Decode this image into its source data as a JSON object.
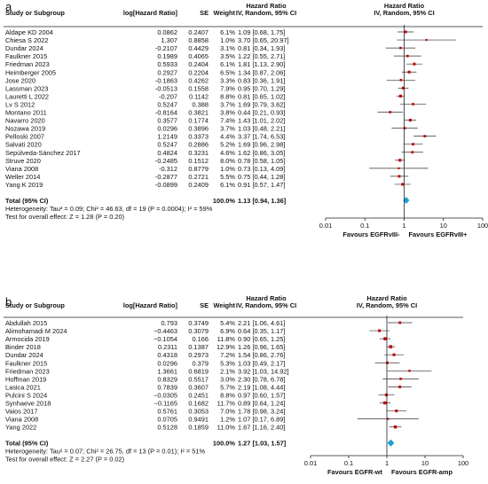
{
  "chart_data": [
    {
      "type": "forest",
      "panel_label": "a",
      "columns": {
        "study": "Study or Subgroup",
        "log_hr": "log[Hazard Ratio]",
        "se": "SE",
        "weight": "Weight",
        "hr_group": "Hazard Ratio",
        "hr_sub": "IV, Random, 95% CI",
        "plot_group": "Hazard Ratio",
        "plot_sub": "IV, Random, 95% CI"
      },
      "studies": [
        {
          "name": "Aldape KD 2004",
          "log_hr": "0.0862",
          "se": "0.2407",
          "weight": "6.1%",
          "ci_text": "1.09 [0.68, 1.75]",
          "hr": 1.09,
          "lo": 0.68,
          "hi": 1.75
        },
        {
          "name": "Chiesa S 2022",
          "log_hr": "1.307",
          "se": "0.8858",
          "weight": "1.0%",
          "ci_text": "3.70 [0.65, 20.97]",
          "hr": 3.7,
          "lo": 0.65,
          "hi": 20.97
        },
        {
          "name": "Dundar 2024",
          "log_hr": "-0.2107",
          "se": "0.4429",
          "weight": "3.1%",
          "ci_text": "0.81 [0.34, 1.93]",
          "hr": 0.81,
          "lo": 0.34,
          "hi": 1.93
        },
        {
          "name": "Faulkner 2015",
          "log_hr": "0.1989",
          "se": "0.4065",
          "weight": "3.5%",
          "ci_text": "1.22 [0.55, 2.71]",
          "hr": 1.22,
          "lo": 0.55,
          "hi": 2.71
        },
        {
          "name": "Friedman 2023",
          "log_hr": "0.5933",
          "se": "0.2404",
          "weight": "6.1%",
          "ci_text": "1.81 [1.13, 2.90]",
          "hr": 1.81,
          "lo": 1.13,
          "hi": 2.9
        },
        {
          "name": "Heimberger 2005",
          "log_hr": "0.2927",
          "se": "0.2204",
          "weight": "6.5%",
          "ci_text": "1.34 [0.87, 2.06]",
          "hr": 1.34,
          "lo": 0.87,
          "hi": 2.06
        },
        {
          "name": "Jose 2020",
          "log_hr": "-0.1863",
          "se": "0.4262",
          "weight": "3.3%",
          "ci_text": "0.83 [0.36, 1.91]",
          "hr": 0.83,
          "lo": 0.36,
          "hi": 1.91
        },
        {
          "name": "Lassman 2023",
          "log_hr": "-0.0513",
          "se": "0.1558",
          "weight": "7.9%",
          "ci_text": "0.95 [0.70, 1.29]",
          "hr": 0.95,
          "lo": 0.7,
          "hi": 1.29
        },
        {
          "name": "Lauretti L 2022",
          "log_hr": "-0.207",
          "se": "0.1142",
          "weight": "8.8%",
          "ci_text": "0.81 [0.65, 1.02]",
          "hr": 0.81,
          "lo": 0.65,
          "hi": 1.02
        },
        {
          "name": "Lv S 2012",
          "log_hr": "0.5247",
          "se": "0.388",
          "weight": "3.7%",
          "ci_text": "1.69 [0.79, 3.62]",
          "hr": 1.69,
          "lo": 0.79,
          "hi": 3.62
        },
        {
          "name": "Montano 2011",
          "log_hr": "-0.8164",
          "se": "0.3821",
          "weight": "3.8%",
          "ci_text": "0.44 [0.21, 0.93]",
          "hr": 0.44,
          "lo": 0.21,
          "hi": 0.93
        },
        {
          "name": "Navarro 2020",
          "log_hr": "0.3577",
          "se": "0.1774",
          "weight": "7.4%",
          "ci_text": "1.43 [1.01, 2.02]",
          "hr": 1.43,
          "lo": 1.01,
          "hi": 2.02
        },
        {
          "name": "Nozawa 2019",
          "log_hr": "0.0296",
          "se": "0.3896",
          "weight": "3.7%",
          "ci_text": "1.03 [0.48, 2.21]",
          "hr": 1.03,
          "lo": 0.48,
          "hi": 2.21
        },
        {
          "name": "Pelloski 2007",
          "log_hr": "1.2149",
          "se": "0.3373",
          "weight": "4.4%",
          "ci_text": "3.37 [1.74, 6.53]",
          "hr": 3.37,
          "lo": 1.74,
          "hi": 6.53
        },
        {
          "name": "Salvati 2020",
          "log_hr": "0.5247",
          "se": "0.2886",
          "weight": "5.2%",
          "ci_text": "1.69 [0.96, 2.98]",
          "hr": 1.69,
          "lo": 0.96,
          "hi": 2.98
        },
        {
          "name": "Sepúlveda-Sánchez 2017",
          "log_hr": "0.4824",
          "se": "0.3231",
          "weight": "4.6%",
          "ci_text": "1.62 [0.86, 3.05]",
          "hr": 1.62,
          "lo": 0.86,
          "hi": 3.05
        },
        {
          "name": "Struve 2020",
          "log_hr": "-0.2485",
          "se": "0.1512",
          "weight": "8.0%",
          "ci_text": "0.78 [0.58, 1.05]",
          "hr": 0.78,
          "lo": 0.58,
          "hi": 1.05
        },
        {
          "name": "Viana 2008",
          "log_hr": "-0.312",
          "se": "0.8779",
          "weight": "1.0%",
          "ci_text": "0.73 [0.13, 4.09]",
          "hr": 0.73,
          "lo": 0.13,
          "hi": 4.09
        },
        {
          "name": "Weller 2014",
          "log_hr": "-0.2877",
          "se": "0.2721",
          "weight": "5.5%",
          "ci_text": "0.75 [0.44, 1.28]",
          "hr": 0.75,
          "lo": 0.44,
          "hi": 1.28
        },
        {
          "name": "Yang K 2019",
          "log_hr": "-0.0899",
          "se": "0.2409",
          "weight": "6.1%",
          "ci_text": "0.91 [0.57, 1.47]",
          "hr": 0.91,
          "lo": 0.57,
          "hi": 1.47
        }
      ],
      "total": {
        "label": "Total (95% CI)",
        "weight": "100.0%",
        "ci_text": "1.13 [0.94, 1.36]",
        "hr": 1.13,
        "lo": 0.94,
        "hi": 1.36
      },
      "heterogeneity": "Heterogeneity: Tau² = 0.09; Chi² = 46.63, df = 19 (P = 0.0004); I² = 59%",
      "overall_effect": "Test for overall effect: Z = 1.28 (P = 0.20)",
      "axis": {
        "scale": "log",
        "ticks": [
          0.01,
          0.1,
          1,
          10,
          100
        ],
        "tick_labels": [
          "0.01",
          "0.1",
          "1",
          "10",
          "100"
        ]
      },
      "favours_left": "Favours EGFRvIII-",
      "favours_right": "Favours EGFRvIII+"
    },
    {
      "type": "forest",
      "panel_label": "b",
      "columns": {
        "study": "Study or Subgroup",
        "log_hr": "log[Hazard Ratio]",
        "se": "SE",
        "weight": "Weight",
        "hr_group": "Hazard Ratio",
        "hr_sub": "IV, Random, 95% CI",
        "plot_group": "Hazard Ratio",
        "plot_sub": "IV, Random, 95% CI"
      },
      "studies": [
        {
          "name": "Abdullah 2015",
          "log_hr": "0.793",
          "se": "0.3749",
          "weight": "5.4%",
          "ci_text": "2.21 [1.06, 4.61]",
          "hr": 2.21,
          "lo": 1.06,
          "hi": 4.61
        },
        {
          "name": "Alimohamadi M 2024",
          "log_hr": "−0.4463",
          "se": "0.3079",
          "weight": "6.9%",
          "ci_text": "0.64 [0.35, 1.17]",
          "hr": 0.64,
          "lo": 0.35,
          "hi": 1.17
        },
        {
          "name": "Armocida 2019",
          "log_hr": "−0.1054",
          "se": "0.166",
          "weight": "11.8%",
          "ci_text": "0.90 [0.65, 1.25]",
          "hr": 0.9,
          "lo": 0.65,
          "hi": 1.25
        },
        {
          "name": "Binder 2018",
          "log_hr": "0.2311",
          "se": "0.1387",
          "weight": "12.9%",
          "ci_text": "1.26 [0.96, 1.65]",
          "hr": 1.26,
          "lo": 0.96,
          "hi": 1.65
        },
        {
          "name": "Dundar 2024",
          "log_hr": "0.4318",
          "se": "0.2973",
          "weight": "7.2%",
          "ci_text": "1.54 [0.86, 2.76]",
          "hr": 1.54,
          "lo": 0.86,
          "hi": 2.76
        },
        {
          "name": "Faulkner 2015",
          "log_hr": "0.0296",
          "se": "0.379",
          "weight": "5.3%",
          "ci_text": "1.03 [0.49, 2.17]",
          "hr": 1.03,
          "lo": 0.49,
          "hi": 2.17
        },
        {
          "name": "Friedman 2023",
          "log_hr": "1.3661",
          "se": "0.6819",
          "weight": "2.1%",
          "ci_text": "3.92 [1.03, 14.92]",
          "hr": 3.92,
          "lo": 1.03,
          "hi": 14.92
        },
        {
          "name": "Hoffman 2019",
          "log_hr": "0.8329",
          "se": "0.5517",
          "weight": "3.0%",
          "ci_text": "2.30 [0.78, 6.78]",
          "hr": 2.3,
          "lo": 0.78,
          "hi": 6.78
        },
        {
          "name": "Lasica 2021",
          "log_hr": "0.7839",
          "se": "0.3607",
          "weight": "5.7%",
          "ci_text": "2.19 [1.08, 4.44]",
          "hr": 2.19,
          "lo": 1.08,
          "hi": 4.44
        },
        {
          "name": "Pulcini S 2024",
          "log_hr": "−0.0305",
          "se": "0.2451",
          "weight": "8.8%",
          "ci_text": "0.97 [0.60, 1.57]",
          "hr": 0.97,
          "lo": 0.6,
          "hi": 1.57
        },
        {
          "name": "Synhaeve 2018",
          "log_hr": "−0.1165",
          "se": "0.1682",
          "weight": "11.7%",
          "ci_text": "0.89 [0.64, 1.24]",
          "hr": 0.89,
          "lo": 0.64,
          "hi": 1.24
        },
        {
          "name": "Vaios 2017",
          "log_hr": "0.5761",
          "se": "0.3053",
          "weight": "7.0%",
          "ci_text": "1.78 [0.98, 3.24]",
          "hr": 1.78,
          "lo": 0.98,
          "hi": 3.24
        },
        {
          "name": "Viana 2008",
          "log_hr": "0.0705",
          "se": "0.9491",
          "weight": "1.2%",
          "ci_text": "1.07 [0.17, 6.89]",
          "hr": 1.07,
          "lo": 0.17,
          "hi": 6.89
        },
        {
          "name": "Yang 2022",
          "log_hr": "0.5128",
          "se": "0.1859",
          "weight": "11.0%",
          "ci_text": "1.67 [1.16, 2.40]",
          "hr": 1.67,
          "lo": 1.16,
          "hi": 2.4
        }
      ],
      "total": {
        "label": "Total (95% CI)",
        "weight": "100.0%",
        "ci_text": "1.27 [1.03, 1.57]",
        "hr": 1.27,
        "lo": 1.03,
        "hi": 1.57
      },
      "heterogeneity": "Heterogeneity: Tau² = 0.07; Chi² = 26.75, df = 13 (P = 0.01); I² = 51%",
      "overall_effect": "Test for overall effect: Z = 2.27 (P = 0.02)",
      "axis": {
        "scale": "log",
        "ticks": [
          0.01,
          0.1,
          1,
          10,
          100
        ],
        "tick_labels": [
          "0.01",
          "0.1",
          "1",
          "10",
          "100"
        ]
      },
      "favours_left": "Favours EGFR-wt",
      "favours_right": "Favours EGFR-amp"
    }
  ],
  "colors": {
    "study_marker": "#c00000",
    "diamond": "#1e9fd4",
    "ci_line": "#333333",
    "rule": "#222222"
  }
}
